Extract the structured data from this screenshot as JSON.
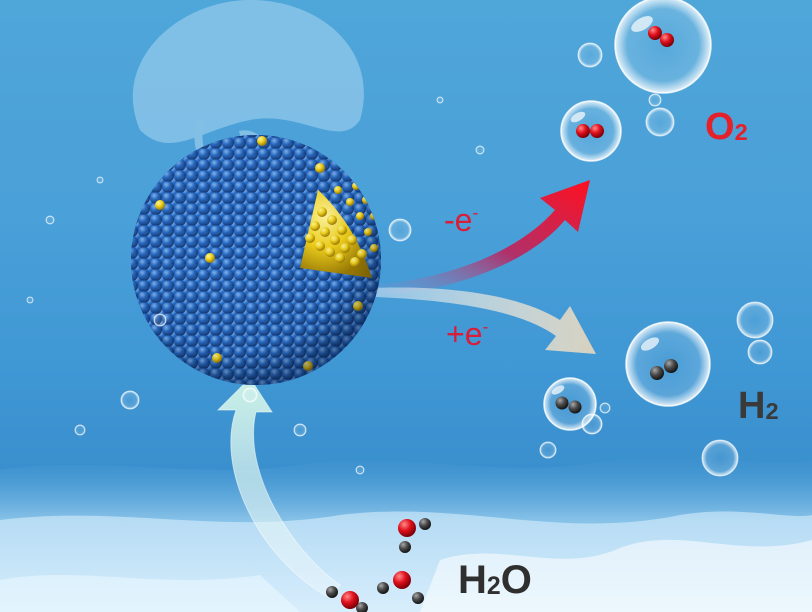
{
  "labels": {
    "o2": {
      "main": "O",
      "sub": "2"
    },
    "h2": {
      "main": "H",
      "sub": "2"
    },
    "h2o": {
      "pre": "H",
      "sub": "2",
      "post": "O"
    },
    "minus_e": {
      "main": "-e",
      "sup": "-"
    },
    "plus_e": {
      "main": "+e",
      "sup": "-"
    }
  },
  "colors": {
    "water": "#4aa0d8",
    "particle_blue": "#2a6fc8",
    "particle_gold": "#f2d21a",
    "oxygen_red": "#e0101c",
    "hydrogen_gray": "#4a4a4a",
    "label_red": "#e4202a"
  },
  "icons": [
    "nanoparticle-sphere",
    "oxidation-arrow",
    "reduction-arrow",
    "intake-arrow",
    "bubble",
    "o2-molecule",
    "h2-molecule",
    "h2o-molecule"
  ]
}
